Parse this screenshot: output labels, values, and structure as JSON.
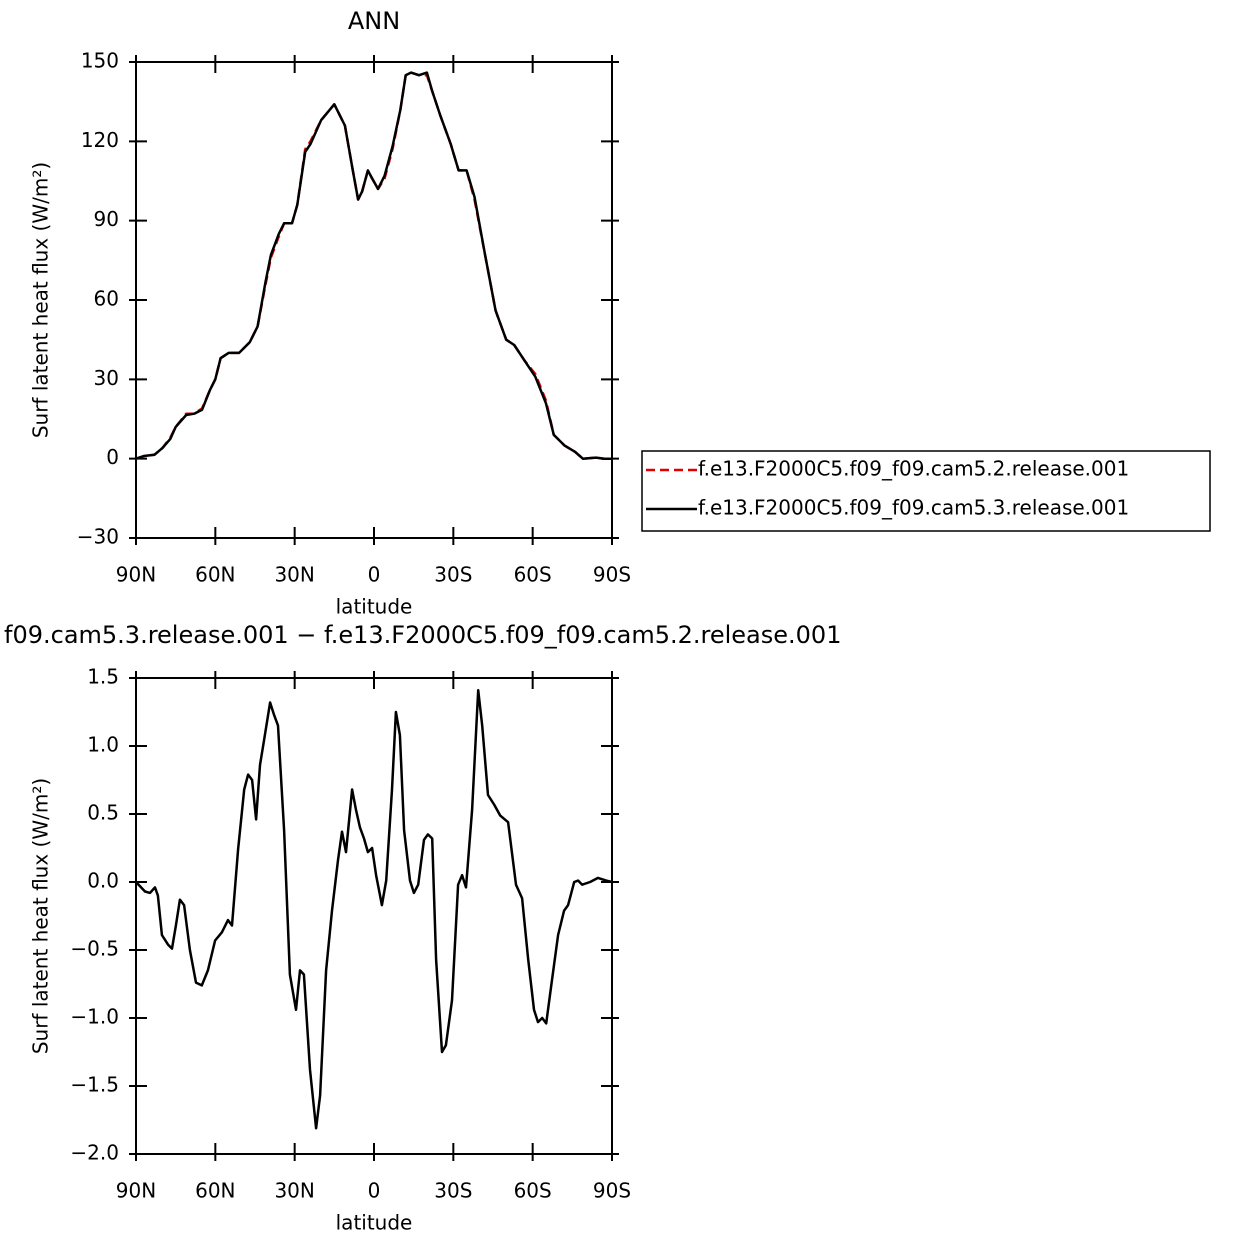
{
  "chart_data": [
    {
      "type": "line",
      "title": "ANN",
      "xlabel": "latitude",
      "ylabel": "Surf latent heat flux (W/m²)",
      "xlim": [
        90,
        -90
      ],
      "ylim": [
        -30,
        150
      ],
      "xticks": [
        {
          "value": 90,
          "label": "90N"
        },
        {
          "value": 60,
          "label": "60N"
        },
        {
          "value": 30,
          "label": "30N"
        },
        0,
        {
          "value": -30,
          "label": "30S"
        },
        {
          "value": -60,
          "label": "60S"
        },
        {
          "value": -90,
          "label": "90S"
        }
      ],
      "yticks": [
        {
          "value": -30,
          "label": "−30"
        },
        0,
        30,
        60,
        90,
        120,
        150
      ],
      "x": [
        90,
        87,
        83,
        80,
        77,
        75,
        71,
        68,
        65,
        62,
        60,
        58,
        55,
        51,
        47,
        44,
        41,
        39,
        36,
        34,
        31,
        29,
        26,
        24,
        20,
        15,
        11,
        8,
        6,
        4.5,
        2.3,
        0.7,
        -1.5,
        -4,
        -7,
        -10,
        -12,
        -14,
        -17,
        -20,
        -22,
        -25,
        -29,
        -32,
        -35,
        -38,
        -42,
        -46,
        -50,
        -53,
        -57,
        -61,
        -65,
        -68,
        -72,
        -76,
        -79,
        -84,
        -87,
        -90
      ],
      "series": [
        {
          "name": "f.e13.F2000C5.f09_f09.cam5.2.release.001",
          "color": "#e00000",
          "dashed": true,
          "values": [
            0,
            1,
            1.5,
            4,
            8,
            12,
            17,
            17,
            19,
            26,
            30,
            38,
            40,
            40,
            44,
            50,
            66,
            76,
            84,
            89,
            89,
            96,
            117,
            120,
            128,
            134,
            126,
            109,
            98,
            101,
            109,
            106,
            102,
            106,
            117,
            132,
            145,
            146,
            145,
            145,
            139,
            130,
            119,
            109,
            109,
            98,
            77,
            56,
            45,
            43,
            37,
            32,
            22,
            9,
            5,
            2.6,
            0,
            0.4,
            0,
            0
          ]
        },
        {
          "name": "f.e13.F2000C5.f09_f09.cam5.3.release.001",
          "color": "#000000",
          "dashed": false,
          "values": [
            0,
            1,
            1.5,
            4,
            7.5,
            12,
            16.5,
            17,
            18.5,
            26,
            30,
            38,
            40,
            40,
            44,
            50,
            67,
            77,
            85,
            89,
            89,
            96,
            116,
            119,
            128,
            134,
            126,
            109,
            98,
            101,
            109,
            106,
            102,
            107,
            118,
            132,
            145,
            146,
            145,
            146,
            139,
            130,
            119,
            109,
            109,
            99,
            77,
            56,
            45,
            43,
            37,
            31,
            21,
            9,
            5,
            2.6,
            0,
            0.4,
            0,
            0
          ]
        }
      ]
    },
    {
      "type": "line",
      "title": "f09.cam5.3.release.001 − f.e13.F2000C5.f09_f09.cam5.2.release.001",
      "xlabel": "latitude",
      "ylabel": "Surf latent heat flux (W/m²)",
      "xlim": [
        90,
        -90
      ],
      "ylim": [
        -2.0,
        1.5
      ],
      "xticks": [
        {
          "value": 90,
          "label": "90N"
        },
        {
          "value": 60,
          "label": "60N"
        },
        {
          "value": 30,
          "label": "30N"
        },
        0,
        {
          "value": -30,
          "label": "30S"
        },
        {
          "value": -60,
          "label": "60S"
        },
        {
          "value": -90,
          "label": "90S"
        }
      ],
      "yticks": [
        {
          "value": -2.0,
          "label": "−2.0"
        },
        {
          "value": -1.5,
          "label": "−1.5"
        },
        {
          "value": -1.0,
          "label": "−1.0"
        },
        {
          "value": -0.5,
          "label": "−0.5"
        },
        {
          "value": 0,
          "label": "0.0"
        },
        0.5,
        {
          "value": 1.0,
          "label": "1.0"
        },
        1.5
      ],
      "x": [
        90,
        86.6,
        84.7,
        82.8,
        81.7,
        80.2,
        77.9,
        76.4,
        74.9,
        73.4,
        71.8,
        69.6,
        67.3,
        65.1,
        62.8,
        60.1,
        57.5,
        55.2,
        53.7,
        51.4,
        49.1,
        47.6,
        46.1,
        44.6,
        43.1,
        41.6,
        39.3,
        37.8,
        36.3,
        34.0,
        31.8,
        29.5,
        28.0,
        26.5,
        24.2,
        21.9,
        20.4,
        18.1,
        15.9,
        13.6,
        12.1,
        10.6,
        8.3,
        6.8,
        5.3,
        3.8,
        2.3,
        0.7,
        -0.8,
        -3.0,
        -4.6,
        -6.8,
        -8.3,
        -9.8,
        -11.4,
        -13.6,
        -15.1,
        -16.7,
        -18.9,
        -20.4,
        -22.0,
        -23.5,
        -25.7,
        -27.2,
        -29.5,
        -31.8,
        -33.3,
        -34.8,
        -37.1,
        -39.4,
        -40.9,
        -43.1,
        -45.4,
        -47.7,
        -50.7,
        -53.7,
        -56.0,
        -58.3,
        -60.5,
        -62.0,
        -63.6,
        -65.1,
        -67.3,
        -69.6,
        -71.9,
        -73.4,
        -75.7,
        -77.2,
        -78.7,
        -81.7,
        -84.7,
        -87.8,
        -90
      ],
      "color": "#000000",
      "values": [
        0,
        -0.07,
        -0.08,
        -0.04,
        -0.1,
        -0.39,
        -0.46,
        -0.49,
        -0.32,
        -0.13,
        -0.17,
        -0.5,
        -0.74,
        -0.76,
        -0.65,
        -0.43,
        -0.37,
        -0.28,
        -0.32,
        0.24,
        0.68,
        0.79,
        0.75,
        0.46,
        0.86,
        1.04,
        1.32,
        1.23,
        1.15,
        0.38,
        -0.68,
        -0.94,
        -0.65,
        -0.68,
        -1.38,
        -1.81,
        -1.57,
        -0.65,
        -0.21,
        0.16,
        0.37,
        0.22,
        0.68,
        0.53,
        0.4,
        0.32,
        0.22,
        0.25,
        0.05,
        -0.17,
        0.01,
        0.68,
        1.25,
        1.08,
        0.38,
        0.01,
        -0.08,
        -0.02,
        0.31,
        0.35,
        0.32,
        -0.57,
        -1.25,
        -1.2,
        -0.87,
        -0.02,
        0.05,
        -0.04,
        0.53,
        1.41,
        1.15,
        0.64,
        0.57,
        0.49,
        0.44,
        -0.02,
        -0.12,
        -0.57,
        -0.94,
        -1.03,
        -1.0,
        -1.04,
        -0.72,
        -0.39,
        -0.21,
        -0.17,
        0,
        0.01,
        -0.02,
        0,
        0.03,
        0.01,
        0
      ]
    }
  ]
}
